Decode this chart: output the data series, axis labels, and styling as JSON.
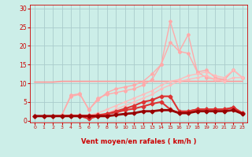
{
  "background_color": "#cceee8",
  "grid_color": "#aacccc",
  "xlabel": "Vent moyen/en rafales ( km/h )",
  "xlabel_color": "#cc0000",
  "tick_color": "#cc0000",
  "xlim": [
    -0.5,
    23.5
  ],
  "ylim": [
    -0.5,
    31
  ],
  "yticks": [
    0,
    5,
    10,
    15,
    20,
    25,
    30
  ],
  "xticks": [
    0,
    1,
    2,
    3,
    4,
    5,
    6,
    7,
    8,
    9,
    10,
    11,
    12,
    13,
    14,
    15,
    16,
    17,
    18,
    19,
    20,
    21,
    22,
    23
  ],
  "lines": [
    {
      "x": [
        0,
        1,
        2,
        3,
        4,
        5,
        6,
        7,
        8,
        9,
        10,
        11,
        12,
        13,
        14,
        15,
        16,
        17,
        18,
        19,
        20,
        21,
        22,
        23
      ],
      "y": [
        10.3,
        10.3,
        10.3,
        10.5,
        10.5,
        10.5,
        10.5,
        10.5,
        10.5,
        10.5,
        10.5,
        10.5,
        10.5,
        10.5,
        10.5,
        10.5,
        10.5,
        10.5,
        10.5,
        10.5,
        10.5,
        10.5,
        10.5,
        10.5
      ],
      "color": "#ff9999",
      "lw": 1.2,
      "marker": null,
      "ms": 0,
      "zorder": 2
    },
    {
      "x": [
        0,
        1,
        2,
        3,
        4,
        5,
        6,
        7,
        8,
        9,
        10,
        11,
        12,
        13,
        14,
        15,
        16,
        17,
        18,
        19,
        20,
        21,
        22,
        23
      ],
      "y": [
        1.2,
        1.2,
        1.2,
        1.5,
        6.5,
        7.0,
        3.0,
        5.5,
        7.5,
        8.5,
        9.0,
        9.5,
        10.5,
        12.5,
        15.0,
        21.0,
        18.5,
        23.0,
        13.0,
        13.5,
        11.5,
        11.0,
        13.5,
        11.5
      ],
      "color": "#ffaaaa",
      "lw": 1.0,
      "marker": "D",
      "ms": 2.0,
      "zorder": 3
    },
    {
      "x": [
        0,
        1,
        2,
        3,
        4,
        5,
        6,
        7,
        8,
        9,
        10,
        11,
        12,
        13,
        14,
        15,
        16,
        17,
        18,
        19,
        20,
        21,
        22,
        23
      ],
      "y": [
        1.2,
        1.2,
        1.2,
        1.5,
        6.8,
        7.2,
        2.8,
        6.0,
        7.0,
        7.5,
        8.0,
        8.5,
        9.5,
        11.0,
        15.0,
        26.5,
        18.5,
        18.0,
        13.0,
        11.5,
        11.0,
        11.0,
        13.5,
        11.5
      ],
      "color": "#ffaaaa",
      "lw": 1.0,
      "marker": "D",
      "ms": 2.0,
      "zorder": 3
    },
    {
      "x": [
        0,
        1,
        2,
        3,
        4,
        5,
        6,
        7,
        8,
        9,
        10,
        11,
        12,
        13,
        14,
        15,
        16,
        17,
        18,
        19,
        20,
        21,
        22,
        23
      ],
      "y": [
        1.2,
        1.2,
        1.2,
        1.3,
        1.3,
        1.3,
        1.3,
        1.5,
        2.0,
        3.0,
        4.0,
        5.0,
        6.0,
        7.0,
        8.5,
        9.5,
        10.5,
        11.0,
        11.5,
        12.0,
        11.0,
        10.5,
        11.5,
        11.5
      ],
      "color": "#ffbbbb",
      "lw": 1.0,
      "marker": "D",
      "ms": 1.5,
      "zorder": 3
    },
    {
      "x": [
        0,
        1,
        2,
        3,
        4,
        5,
        6,
        7,
        8,
        9,
        10,
        11,
        12,
        13,
        14,
        15,
        16,
        17,
        18,
        19,
        20,
        21,
        22,
        23
      ],
      "y": [
        1.2,
        1.2,
        1.2,
        1.3,
        1.5,
        1.5,
        1.5,
        2.0,
        3.0,
        4.0,
        5.0,
        6.0,
        7.0,
        8.0,
        9.5,
        10.5,
        11.0,
        12.0,
        12.5,
        13.0,
        12.0,
        11.5,
        13.5,
        11.5
      ],
      "color": "#ffbbbb",
      "lw": 1.0,
      "marker": "D",
      "ms": 1.5,
      "zorder": 3
    },
    {
      "x": [
        0,
        1,
        2,
        3,
        4,
        5,
        6,
        7,
        8,
        9,
        10,
        11,
        12,
        13,
        14,
        15,
        16,
        17,
        18,
        19,
        20,
        21,
        22,
        23
      ],
      "y": [
        1.2,
        1.2,
        1.2,
        1.2,
        1.3,
        1.3,
        1.3,
        1.5,
        1.8,
        2.5,
        3.2,
        4.0,
        5.0,
        5.5,
        6.5,
        6.5,
        2.5,
        2.5,
        3.0,
        3.0,
        3.0,
        3.0,
        3.5,
        2.0
      ],
      "color": "#dd3333",
      "lw": 1.5,
      "marker": "D",
      "ms": 2.5,
      "zorder": 4
    },
    {
      "x": [
        0,
        1,
        2,
        3,
        4,
        5,
        6,
        7,
        8,
        9,
        10,
        11,
        12,
        13,
        14,
        15,
        16,
        17,
        18,
        19,
        20,
        21,
        22,
        23
      ],
      "y": [
        1.2,
        1.2,
        1.2,
        1.2,
        1.2,
        1.2,
        0.5,
        1.2,
        1.8,
        2.2,
        2.8,
        3.2,
        3.8,
        4.5,
        5.0,
        3.0,
        2.0,
        2.5,
        3.0,
        3.0,
        3.0,
        3.0,
        3.5,
        2.0
      ],
      "color": "#dd3333",
      "lw": 1.5,
      "marker": "D",
      "ms": 2.5,
      "zorder": 4
    },
    {
      "x": [
        0,
        1,
        2,
        3,
        4,
        5,
        6,
        7,
        8,
        9,
        10,
        11,
        12,
        13,
        14,
        15,
        16,
        17,
        18,
        19,
        20,
        21,
        22,
        23
      ],
      "y": [
        1.2,
        1.2,
        1.2,
        1.2,
        1.2,
        1.2,
        1.2,
        1.2,
        1.2,
        1.5,
        1.8,
        2.0,
        2.5,
        2.5,
        2.8,
        2.8,
        2.0,
        2.0,
        2.5,
        2.5,
        2.5,
        2.5,
        2.8,
        1.8
      ],
      "color": "#990000",
      "lw": 2.0,
      "marker": "D",
      "ms": 2.5,
      "zorder": 5
    }
  ],
  "arrows": [
    "↗",
    "→",
    "↘",
    "↘",
    "↘",
    "↘",
    "↘",
    "↗",
    "↑",
    "↑",
    "↗",
    "↗",
    "↗",
    "↗",
    "↗",
    "↗",
    "↑",
    "→",
    "↗",
    "↑",
    "↗",
    "↗",
    "↗",
    "↗"
  ]
}
